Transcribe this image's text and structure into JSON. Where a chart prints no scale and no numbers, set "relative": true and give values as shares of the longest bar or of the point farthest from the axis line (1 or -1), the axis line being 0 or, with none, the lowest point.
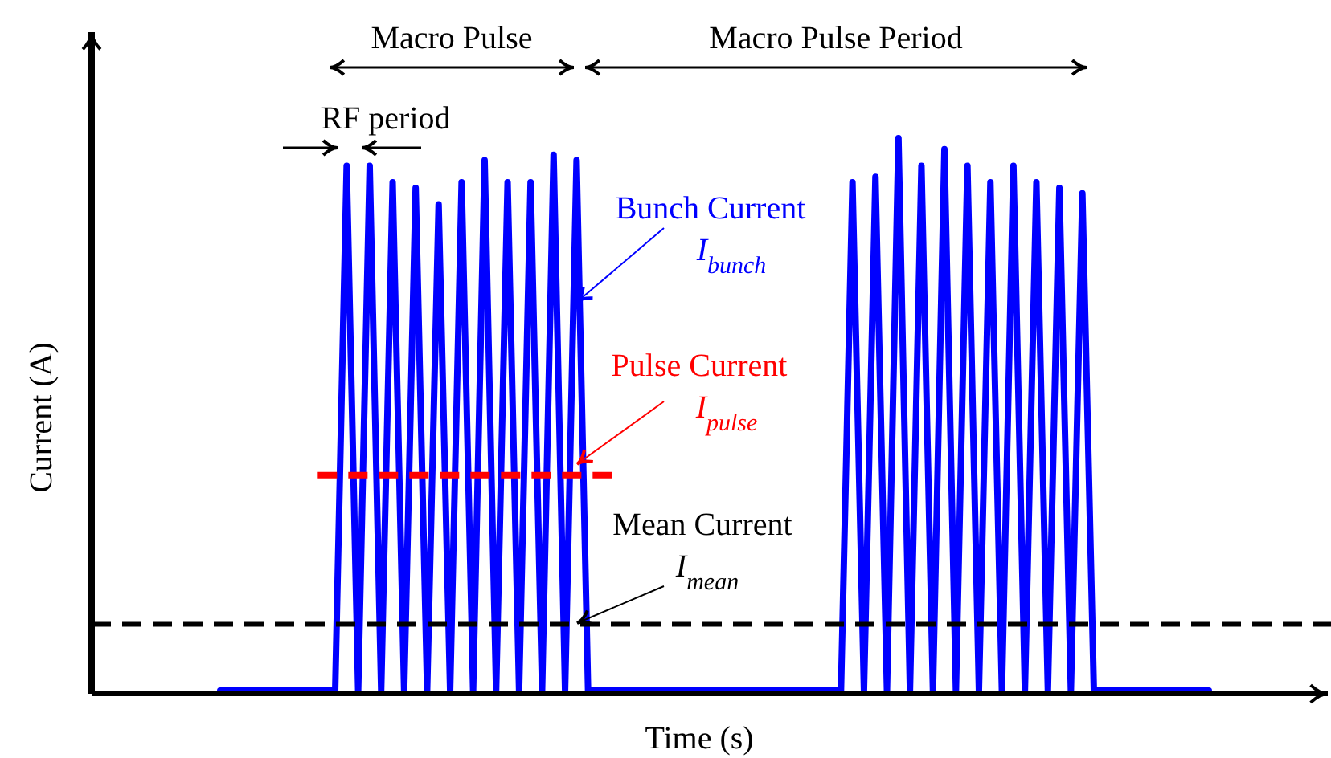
{
  "chart_data": {
    "type": "line",
    "relative": true,
    "xlabel": "Time (s)",
    "ylabel": "Current (A)",
    "categories": [
      null,
      null,
      null,
      null,
      null,
      null,
      null,
      null,
      null,
      null,
      null,
      null,
      null,
      null,
      null,
      null,
      null,
      null,
      null,
      null,
      null,
      null,
      null,
      null,
      null,
      null,
      null,
      null,
      null,
      null,
      null,
      null,
      null,
      null,
      null,
      null,
      null,
      null,
      null,
      null,
      null,
      null,
      null,
      null,
      null,
      null,
      null,
      null,
      null,
      null,
      null,
      null,
      null,
      null,
      null,
      null,
      null,
      null,
      null,
      null,
      null,
      null,
      null,
      null,
      null,
      null,
      null,
      null,
      null,
      null,
      null,
      null,
      null,
      null,
      null,
      null,
      null,
      null,
      null,
      null,
      null,
      null,
      null,
      null,
      null,
      null,
      null
    ],
    "series": [
      {
        "color": "#0000ff",
        "line_style": "solid",
        "values": [
          0,
          0,
          0,
          0,
          0,
          0,
          0,
          0,
          0,
          0,
          0,
          0.95,
          0,
          0.95,
          0,
          0.92,
          0,
          0.91,
          0,
          0.88,
          0,
          0.92,
          0,
          0.96,
          0,
          0.92,
          0,
          0.92,
          0,
          0.97,
          0,
          0.96,
          0,
          0,
          0,
          0,
          0,
          0,
          0,
          0,
          0,
          0,
          0,
          0,
          0,
          0,
          0,
          0,
          0,
          0,
          0,
          0,
          0,
          0,
          0,
          0.92,
          0,
          0.93,
          0,
          1,
          0,
          0.95,
          0,
          0.98,
          0,
          0.95,
          0,
          0.92,
          0,
          0.95,
          0,
          0.92,
          0,
          0.91,
          0,
          0.9,
          0,
          0,
          0,
          0,
          0,
          0,
          0,
          0,
          0,
          0,
          0
        ]
      }
    ],
    "ref_lines": [
      {
        "axis": "y",
        "value": 0.39,
        "color": "#ff0000",
        "line_style": "dashed"
      },
      {
        "axis": "y",
        "value": 0.12,
        "color": "#000000",
        "line_style": "dashed"
      }
    ],
    "annotations": [
      "Macro Pulse",
      "Macro Pulse Period",
      "RF period",
      "Bunch Current",
      "I$_{bunch}$",
      "Pulse Current",
      "I$_{pulse}$",
      "Mean Current",
      "I$_{mean}$"
    ],
    "legend": false,
    "grid": false,
    "marker": "none"
  }
}
